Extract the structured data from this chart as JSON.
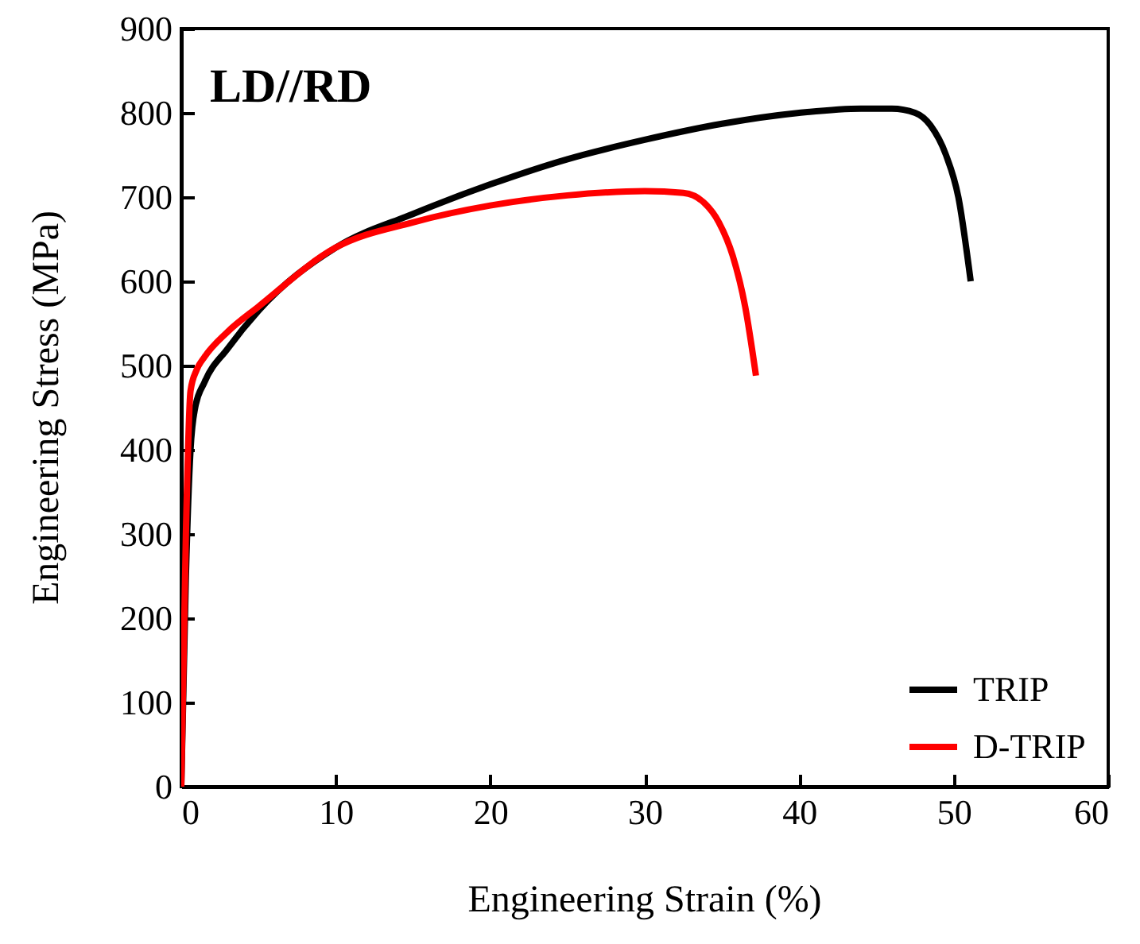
{
  "chart_data": {
    "type": "line",
    "annotations": [
      "LD//RD"
    ],
    "xlabel": "Engineering Strain (%)",
    "ylabel": "Engineering Stress (MPa)",
    "xlim": [
      0,
      60
    ],
    "ylim": [
      0,
      900
    ],
    "xticks": [
      0,
      10,
      20,
      30,
      40,
      50,
      60
    ],
    "yticks": [
      0,
      100,
      200,
      300,
      400,
      500,
      600,
      700,
      800,
      900
    ],
    "grid": false,
    "legend": "bottom right",
    "marker": "none",
    "line_style": "solid",
    "series": [
      {
        "name": "TRIP",
        "color": "#000000",
        "x": [
          0,
          0.3,
          0.6,
          0.9,
          1.5,
          3,
          5,
          10,
          15,
          20,
          25,
          30,
          35,
          40,
          44,
          46,
          47.5,
          48.5,
          49.5,
          50.3,
          51.1
        ],
        "values": [
          0,
          250,
          400,
          450,
          480,
          520,
          565,
          640,
          680,
          715,
          745,
          768,
          787,
          800,
          805,
          805,
          800,
          785,
          750,
          700,
          600
        ]
      },
      {
        "name": "D-TRIP",
        "color": "#ff0000",
        "x": [
          0,
          0.3,
          0.6,
          1,
          1.5,
          3,
          5,
          10,
          15,
          20,
          25,
          30,
          32.5,
          33.8,
          34.8,
          35.7,
          36.5,
          37.2
        ],
        "values": [
          0,
          300,
          470,
          495,
          510,
          540,
          570,
          640,
          670,
          690,
          702,
          707,
          705,
          694,
          670,
          630,
          570,
          488
        ]
      }
    ]
  }
}
